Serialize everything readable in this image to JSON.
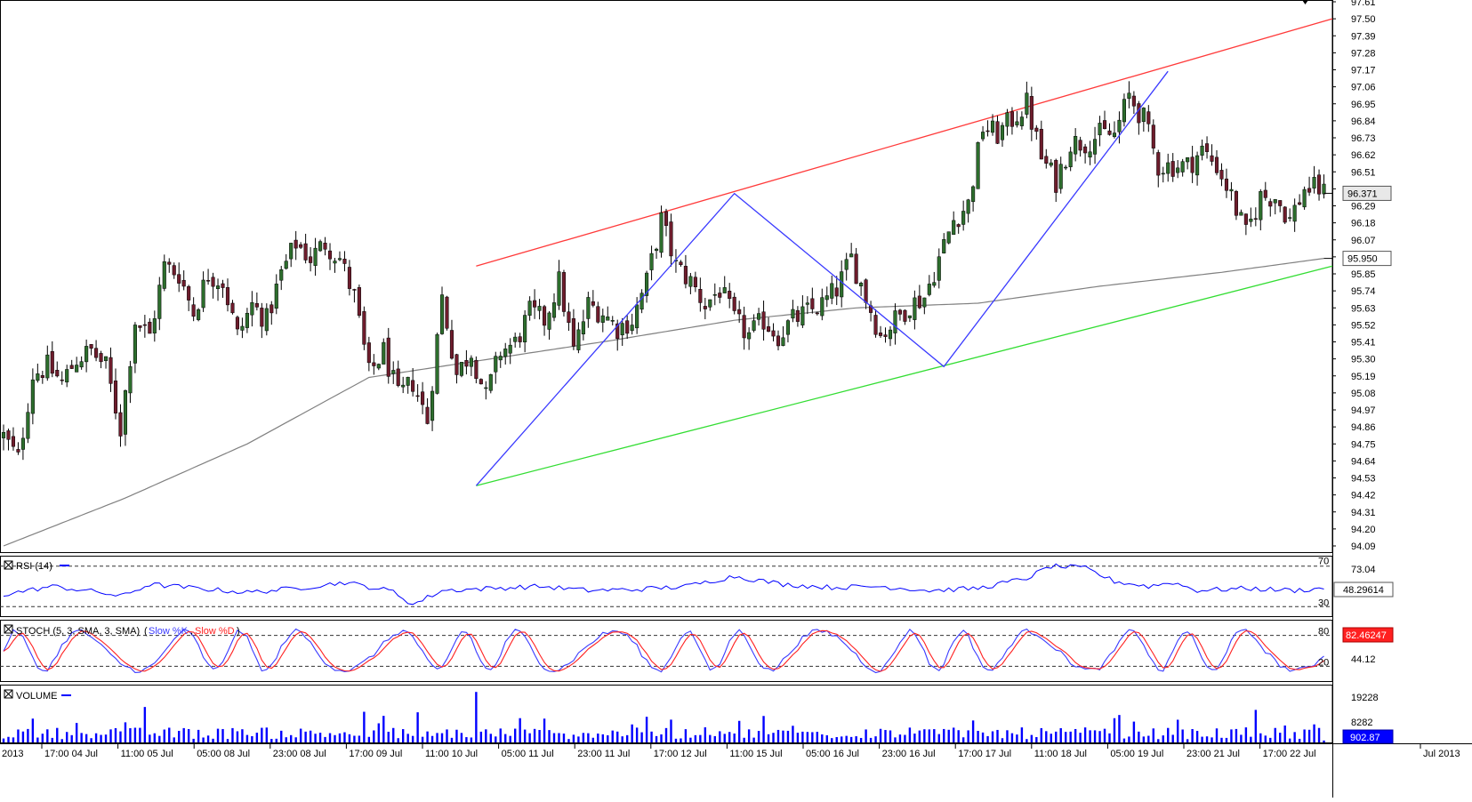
{
  "chart_data": {
    "type": "candlestick",
    "instrument_last": "96.371",
    "price_axis": {
      "ticks": [
        "97.61",
        "97.50",
        "97.39",
        "97.28",
        "97.17",
        "97.06",
        "96.95",
        "96.84",
        "96.73",
        "96.62",
        "96.51",
        "96.40",
        "96.29",
        "96.18",
        "96.07",
        "95.96",
        "95.85",
        "95.74",
        "95.63",
        "95.52",
        "95.41",
        "95.30",
        "95.19",
        "95.08",
        "94.97",
        "94.86",
        "94.75",
        "94.64",
        "94.53",
        "94.42",
        "94.31",
        "94.20",
        "94.09"
      ],
      "range": [
        94.05,
        97.62
      ],
      "last_price_label": "96.371",
      "ma_label": "95.950"
    },
    "time_axis": {
      "labels": [
        "2013",
        "17:00 04 Jul",
        "11:00 05 Jul",
        "05:00 08 Jul",
        "23:00 08 Jul",
        "17:00 09 Jul",
        "11:00 10 Jul",
        "05:00 11 Jul",
        "23:00 11 Jul",
        "17:00 12 Jul",
        "11:00 15 Jul",
        "05:00 16 Jul",
        "23:00 16 Jul",
        "17:00 17 Jul",
        "11:00 18 Jul",
        "05:00 19 Jul",
        "23:00 21 Jul",
        "17:00 22 Jul",
        "Jul 2013"
      ]
    },
    "price_anchors": [
      [
        0,
        94.8
      ],
      [
        3,
        94.65
      ],
      [
        6,
        95.2
      ],
      [
        9,
        95.25
      ],
      [
        12,
        95.15
      ],
      [
        15,
        95.3
      ],
      [
        18,
        95.35
      ],
      [
        21,
        95.25
      ],
      [
        24,
        94.85
      ],
      [
        27,
        95.55
      ],
      [
        30,
        95.45
      ],
      [
        33,
        95.9
      ],
      [
        36,
        95.85
      ],
      [
        39,
        95.6
      ],
      [
        42,
        95.85
      ],
      [
        45,
        95.8
      ],
      [
        48,
        95.45
      ],
      [
        51,
        95.65
      ],
      [
        54,
        95.55
      ],
      [
        57,
        95.85
      ],
      [
        60,
        96.05
      ],
      [
        63,
        95.95
      ],
      [
        66,
        96.05
      ],
      [
        69,
        95.95
      ],
      [
        72,
        95.7
      ],
      [
        75,
        95.2
      ],
      [
        78,
        95.35
      ],
      [
        81,
        95.05
      ],
      [
        84,
        95.15
      ],
      [
        87,
        94.9
      ],
      [
        90,
        95.7
      ],
      [
        93,
        95.2
      ],
      [
        96,
        95.35
      ],
      [
        99,
        95.05
      ],
      [
        102,
        95.35
      ],
      [
        105,
        95.4
      ],
      [
        108,
        95.6
      ],
      [
        111,
        95.55
      ],
      [
        114,
        95.8
      ],
      [
        117,
        95.35
      ],
      [
        120,
        95.65
      ],
      [
        123,
        95.6
      ],
      [
        126,
        95.5
      ],
      [
        129,
        95.55
      ],
      [
        132,
        95.8
      ],
      [
        135,
        96.2
      ],
      [
        138,
        95.9
      ],
      [
        141,
        95.8
      ],
      [
        144,
        95.65
      ],
      [
        147,
        95.75
      ],
      [
        150,
        95.55
      ],
      [
        153,
        95.45
      ],
      [
        156,
        95.55
      ],
      [
        159,
        95.45
      ],
      [
        162,
        95.55
      ],
      [
        165,
        95.6
      ],
      [
        168,
        95.65
      ],
      [
        171,
        95.75
      ],
      [
        174,
        95.95
      ],
      [
        177,
        95.7
      ],
      [
        180,
        95.45
      ],
      [
        183,
        95.55
      ],
      [
        186,
        95.65
      ],
      [
        189,
        95.7
      ],
      [
        192,
        95.95
      ],
      [
        195,
        96.2
      ],
      [
        198,
        96.3
      ],
      [
        201,
        96.8
      ],
      [
        204,
        96.75
      ],
      [
        207,
        96.85
      ],
      [
        210,
        96.95
      ],
      [
        213,
        96.6
      ],
      [
        216,
        96.45
      ],
      [
        219,
        96.7
      ],
      [
        222,
        96.7
      ],
      [
        225,
        96.75
      ],
      [
        228,
        96.75
      ],
      [
        231,
        97.0
      ],
      [
        234,
        96.85
      ],
      [
        237,
        96.55
      ],
      [
        240,
        96.55
      ],
      [
        243,
        96.55
      ],
      [
        246,
        96.65
      ],
      [
        249,
        96.55
      ],
      [
        252,
        96.35
      ],
      [
        255,
        96.1
      ],
      [
        258,
        96.35
      ],
      [
        261,
        96.35
      ],
      [
        264,
        96.2
      ],
      [
        267,
        96.4
      ],
      [
        270,
        96.4
      ],
      [
        271,
        96.37
      ]
    ],
    "ma_anchors": [
      [
        0,
        94.09
      ],
      [
        25,
        94.4
      ],
      [
        50,
        94.75
      ],
      [
        75,
        95.18
      ],
      [
        100,
        95.3
      ],
      [
        125,
        95.42
      ],
      [
        150,
        95.55
      ],
      [
        175,
        95.63
      ],
      [
        200,
        95.66
      ],
      [
        225,
        95.77
      ],
      [
        250,
        95.86
      ],
      [
        271,
        95.95
      ]
    ],
    "channel": {
      "upper": [
        [
          97,
          95.9
        ],
        [
          271,
          97.5
        ]
      ],
      "lower": [
        [
          97,
          94.48
        ],
        [
          271,
          95.9
        ]
      ]
    },
    "zigzag": [
      [
        97,
        94.48
      ],
      [
        150,
        96.37
      ],
      [
        193,
        95.25
      ],
      [
        239,
        97.16
      ]
    ],
    "rsi": {
      "label": "RSI (14)",
      "value_label": "48.29614",
      "ticks": [
        "70",
        "73.04",
        "30"
      ],
      "levels": [
        70,
        30
      ],
      "range": [
        25,
        75
      ],
      "anchors": [
        [
          0,
          42
        ],
        [
          10,
          50
        ],
        [
          20,
          44
        ],
        [
          24,
          40
        ],
        [
          30,
          52
        ],
        [
          40,
          48
        ],
        [
          50,
          44
        ],
        [
          60,
          48
        ],
        [
          70,
          54
        ],
        [
          80,
          45
        ],
        [
          84,
          32
        ],
        [
          90,
          46
        ],
        [
          100,
          48
        ],
        [
          110,
          50
        ],
        [
          120,
          46
        ],
        [
          130,
          47
        ],
        [
          140,
          50
        ],
        [
          150,
          60
        ],
        [
          160,
          52
        ],
        [
          170,
          49
        ],
        [
          180,
          50
        ],
        [
          190,
          46
        ],
        [
          200,
          48
        ],
        [
          210,
          58
        ],
        [
          215,
          70
        ],
        [
          222,
          68
        ],
        [
          228,
          55
        ],
        [
          235,
          50
        ],
        [
          240,
          54
        ],
        [
          245,
          46
        ],
        [
          255,
          48
        ],
        [
          260,
          47
        ],
        [
          265,
          46
        ],
        [
          271,
          48
        ]
      ]
    },
    "stoch": {
      "label": "STOCH (5, 3, SMA, 3, SMA)",
      "k_label": "Slow %K",
      "d_label": "Slow %D",
      "value_label": "82.46247",
      "ticks": [
        "80",
        "44.12",
        "20"
      ],
      "levels": [
        80,
        20
      ],
      "range": [
        0,
        100
      ]
    },
    "volume": {
      "label": "VOLUME",
      "value_label": "902.87",
      "ticks": [
        "19228",
        "8282"
      ],
      "max": 24000
    },
    "colors": {
      "up": "#2d6e2d",
      "down": "#6e1c2c",
      "upper_channel": "#ff3a3a",
      "lower_channel": "#33dd33",
      "zigzag": "#3a3aff",
      "ma": "#808080",
      "rsi": "#0000ff",
      "stoch_k": "#3a3aff",
      "stoch_d": "#ff2020",
      "volume": "#0000ff",
      "ma_box": "#e8e8e8",
      "stoch_box": "#ff2020",
      "volume_box": "#0000ff"
    }
  }
}
